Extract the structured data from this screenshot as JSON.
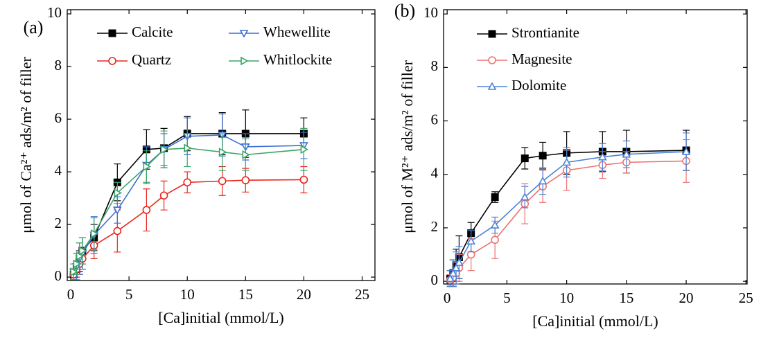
{
  "chart_data": [
    {
      "type": "line",
      "panel_label": "(a)",
      "x_label": "[Ca]initial (mmol/L)",
      "y_label": "μmol of Ca²⁺ ads/m² of filler",
      "xlim": [
        -0.3,
        26.1
      ],
      "ylim": [
        -0.13,
        10.16
      ],
      "xticks": [
        0,
        5,
        10,
        15,
        20,
        25
      ],
      "yticks": [
        0,
        2,
        4,
        6,
        8,
        10
      ],
      "legend": "upper left",
      "x": [
        0.25,
        0.5,
        0.75,
        1,
        2,
        4,
        6.5,
        8,
        10,
        13,
        15,
        20
      ],
      "series": [
        {
          "name": "Calcite",
          "color": "#000000",
          "marker": "square",
          "values": [
            0.1,
            0.3,
            0.6,
            1.0,
            1.5,
            3.6,
            4.85,
            4.9,
            5.45,
            5.45,
            5.45,
            5.45
          ],
          "errors": [
            0.2,
            0.3,
            0.4,
            0.5,
            0.5,
            0.7,
            0.75,
            0.75,
            0.65,
            0.8,
            0.9,
            0.6
          ]
        },
        {
          "name": "Quartz",
          "color": "#e8261e",
          "marker": "circle",
          "values": [
            0.1,
            0.3,
            0.5,
            0.7,
            1.2,
            1.75,
            2.55,
            3.1,
            3.6,
            3.65,
            3.68,
            3.7
          ],
          "errors": [
            0.2,
            0.3,
            0.4,
            0.4,
            0.5,
            0.8,
            0.8,
            0.55,
            0.4,
            0.55,
            0.45,
            0.5
          ]
        },
        {
          "name": "Whewellite",
          "color": "#3b6fd4",
          "marker": "triangle-down",
          "values": [
            0.2,
            0.4,
            0.7,
            0.9,
            1.6,
            2.55,
            4.25,
            4.85,
            5.35,
            5.4,
            4.95,
            5.0
          ],
          "errors": [
            0.3,
            0.5,
            0.6,
            0.6,
            0.7,
            0.5,
            0.7,
            0.6,
            0.7,
            0.8,
            0.5,
            0.5
          ]
        },
        {
          "name": "Whitlockite",
          "color": "#3aa565",
          "marker": "triangle-right",
          "values": [
            0.2,
            0.5,
            0.8,
            1.0,
            1.65,
            3.2,
            4.2,
            4.85,
            4.9,
            4.75,
            4.65,
            4.85
          ],
          "errors": [
            0.3,
            0.4,
            0.5,
            0.5,
            0.6,
            0.4,
            0.6,
            0.7,
            0.7,
            0.7,
            0.6,
            0.8
          ]
        }
      ]
    },
    {
      "type": "line",
      "panel_label": "(b)",
      "x_label": "[Ca]initial (mmol/L)",
      "y_label": "μmol of M²⁺ ads/m² of filler",
      "xlim": [
        -0.3,
        25.1
      ],
      "ylim": [
        -0.1,
        10.16
      ],
      "xticks": [
        0,
        5,
        10,
        15,
        20,
        25
      ],
      "yticks": [
        0,
        2,
        4,
        6,
        8,
        10
      ],
      "legend": "upper left",
      "x": [
        0.25,
        0.5,
        0.75,
        1,
        2,
        4,
        6.5,
        8,
        10,
        13,
        15,
        20
      ],
      "series": [
        {
          "name": "Strontianite",
          "color": "#000000",
          "marker": "square",
          "values": [
            0.1,
            0.3,
            0.6,
            0.9,
            1.8,
            3.15,
            4.6,
            4.7,
            4.8,
            4.85,
            4.85,
            4.9
          ],
          "errors": [
            0.3,
            0.5,
            0.6,
            0.8,
            0.4,
            0.2,
            0.4,
            0.5,
            0.8,
            0.75,
            0.8,
            0.75
          ]
        },
        {
          "name": "Magnesite",
          "color": "#f07070",
          "marker": "circle",
          "values": [
            0.05,
            0.15,
            0.3,
            0.5,
            1.0,
            1.55,
            2.9,
            3.55,
            4.15,
            4.35,
            4.45,
            4.5
          ],
          "errors": [
            0.2,
            0.3,
            0.4,
            0.5,
            0.6,
            0.7,
            0.75,
            0.6,
            0.75,
            0.5,
            0.4,
            0.8
          ]
        },
        {
          "name": "Dolomite",
          "color": "#4a82d8",
          "marker": "triangle-up",
          "values": [
            0.1,
            0.3,
            0.5,
            0.7,
            1.5,
            2.1,
            3.15,
            3.75,
            4.45,
            4.65,
            4.75,
            4.85
          ],
          "errors": [
            0.3,
            0.5,
            0.6,
            0.6,
            0.4,
            0.3,
            0.4,
            0.5,
            0.55,
            0.5,
            0.5,
            0.7
          ]
        }
      ]
    }
  ]
}
